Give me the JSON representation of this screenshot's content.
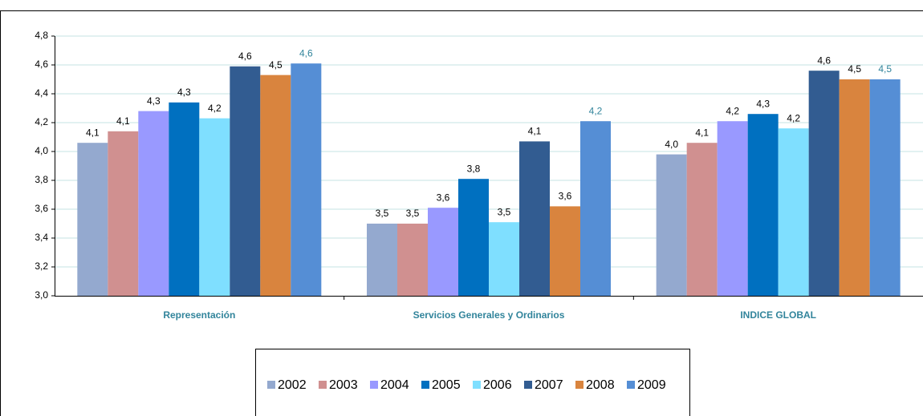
{
  "chart_data": {
    "type": "bar",
    "categories": [
      "Representación",
      "Servicios Generales y Ordinarios",
      "INDICE GLOBAL"
    ],
    "series": [
      {
        "name": "2002",
        "color": "#94a9cf",
        "values": [
          4.06,
          3.5,
          3.98
        ],
        "value_labels": [
          "4,1",
          "3,5",
          "4,0"
        ]
      },
      {
        "name": "2003",
        "color": "#d09090",
        "values": [
          4.14,
          3.5,
          4.06
        ],
        "value_labels": [
          "4,1",
          "3,5",
          "4,1"
        ]
      },
      {
        "name": "2004",
        "color": "#9999ff",
        "values": [
          4.28,
          3.61,
          4.21
        ],
        "value_labels": [
          "4,3",
          "3,6",
          "4,2"
        ]
      },
      {
        "name": "2005",
        "color": "#0070c0",
        "values": [
          4.34,
          3.81,
          4.26
        ],
        "value_labels": [
          "4,3",
          "3,8",
          "4,3"
        ]
      },
      {
        "name": "2006",
        "color": "#7fdfff",
        "values": [
          4.23,
          3.51,
          4.16
        ],
        "value_labels": [
          "4,2",
          "3,5",
          "4,2"
        ]
      },
      {
        "name": "2007",
        "color": "#325c91",
        "values": [
          4.59,
          4.07,
          4.56
        ],
        "value_labels": [
          "4,6",
          "4,1",
          "4,6"
        ]
      },
      {
        "name": "2008",
        "color": "#d9843e",
        "values": [
          4.53,
          3.62,
          4.5
        ],
        "value_labels": [
          "4,5",
          "3,6",
          "4,5"
        ]
      },
      {
        "name": "2009",
        "color": "#558ed5",
        "values": [
          4.61,
          4.21,
          4.5
        ],
        "value_labels": [
          "4,6",
          "4,2",
          "4,5"
        ],
        "label_color": "#31849b"
      }
    ],
    "ylim": [
      3.0,
      4.8
    ],
    "yticks": [
      {
        "value": 3.0,
        "label": "3,0"
      },
      {
        "value": 3.2,
        "label": "3,2"
      },
      {
        "value": 3.4,
        "label": "3,4"
      },
      {
        "value": 3.6,
        "label": "3,6"
      },
      {
        "value": 3.8,
        "label": "3,8"
      },
      {
        "value": 4.0,
        "label": "4,0"
      },
      {
        "value": 4.2,
        "label": "4,2"
      },
      {
        "value": 4.4,
        "label": "4,4"
      },
      {
        "value": 4.6,
        "label": "4,6"
      },
      {
        "value": 4.8,
        "label": "4,8"
      }
    ],
    "grid": true,
    "legend": "bottom"
  }
}
